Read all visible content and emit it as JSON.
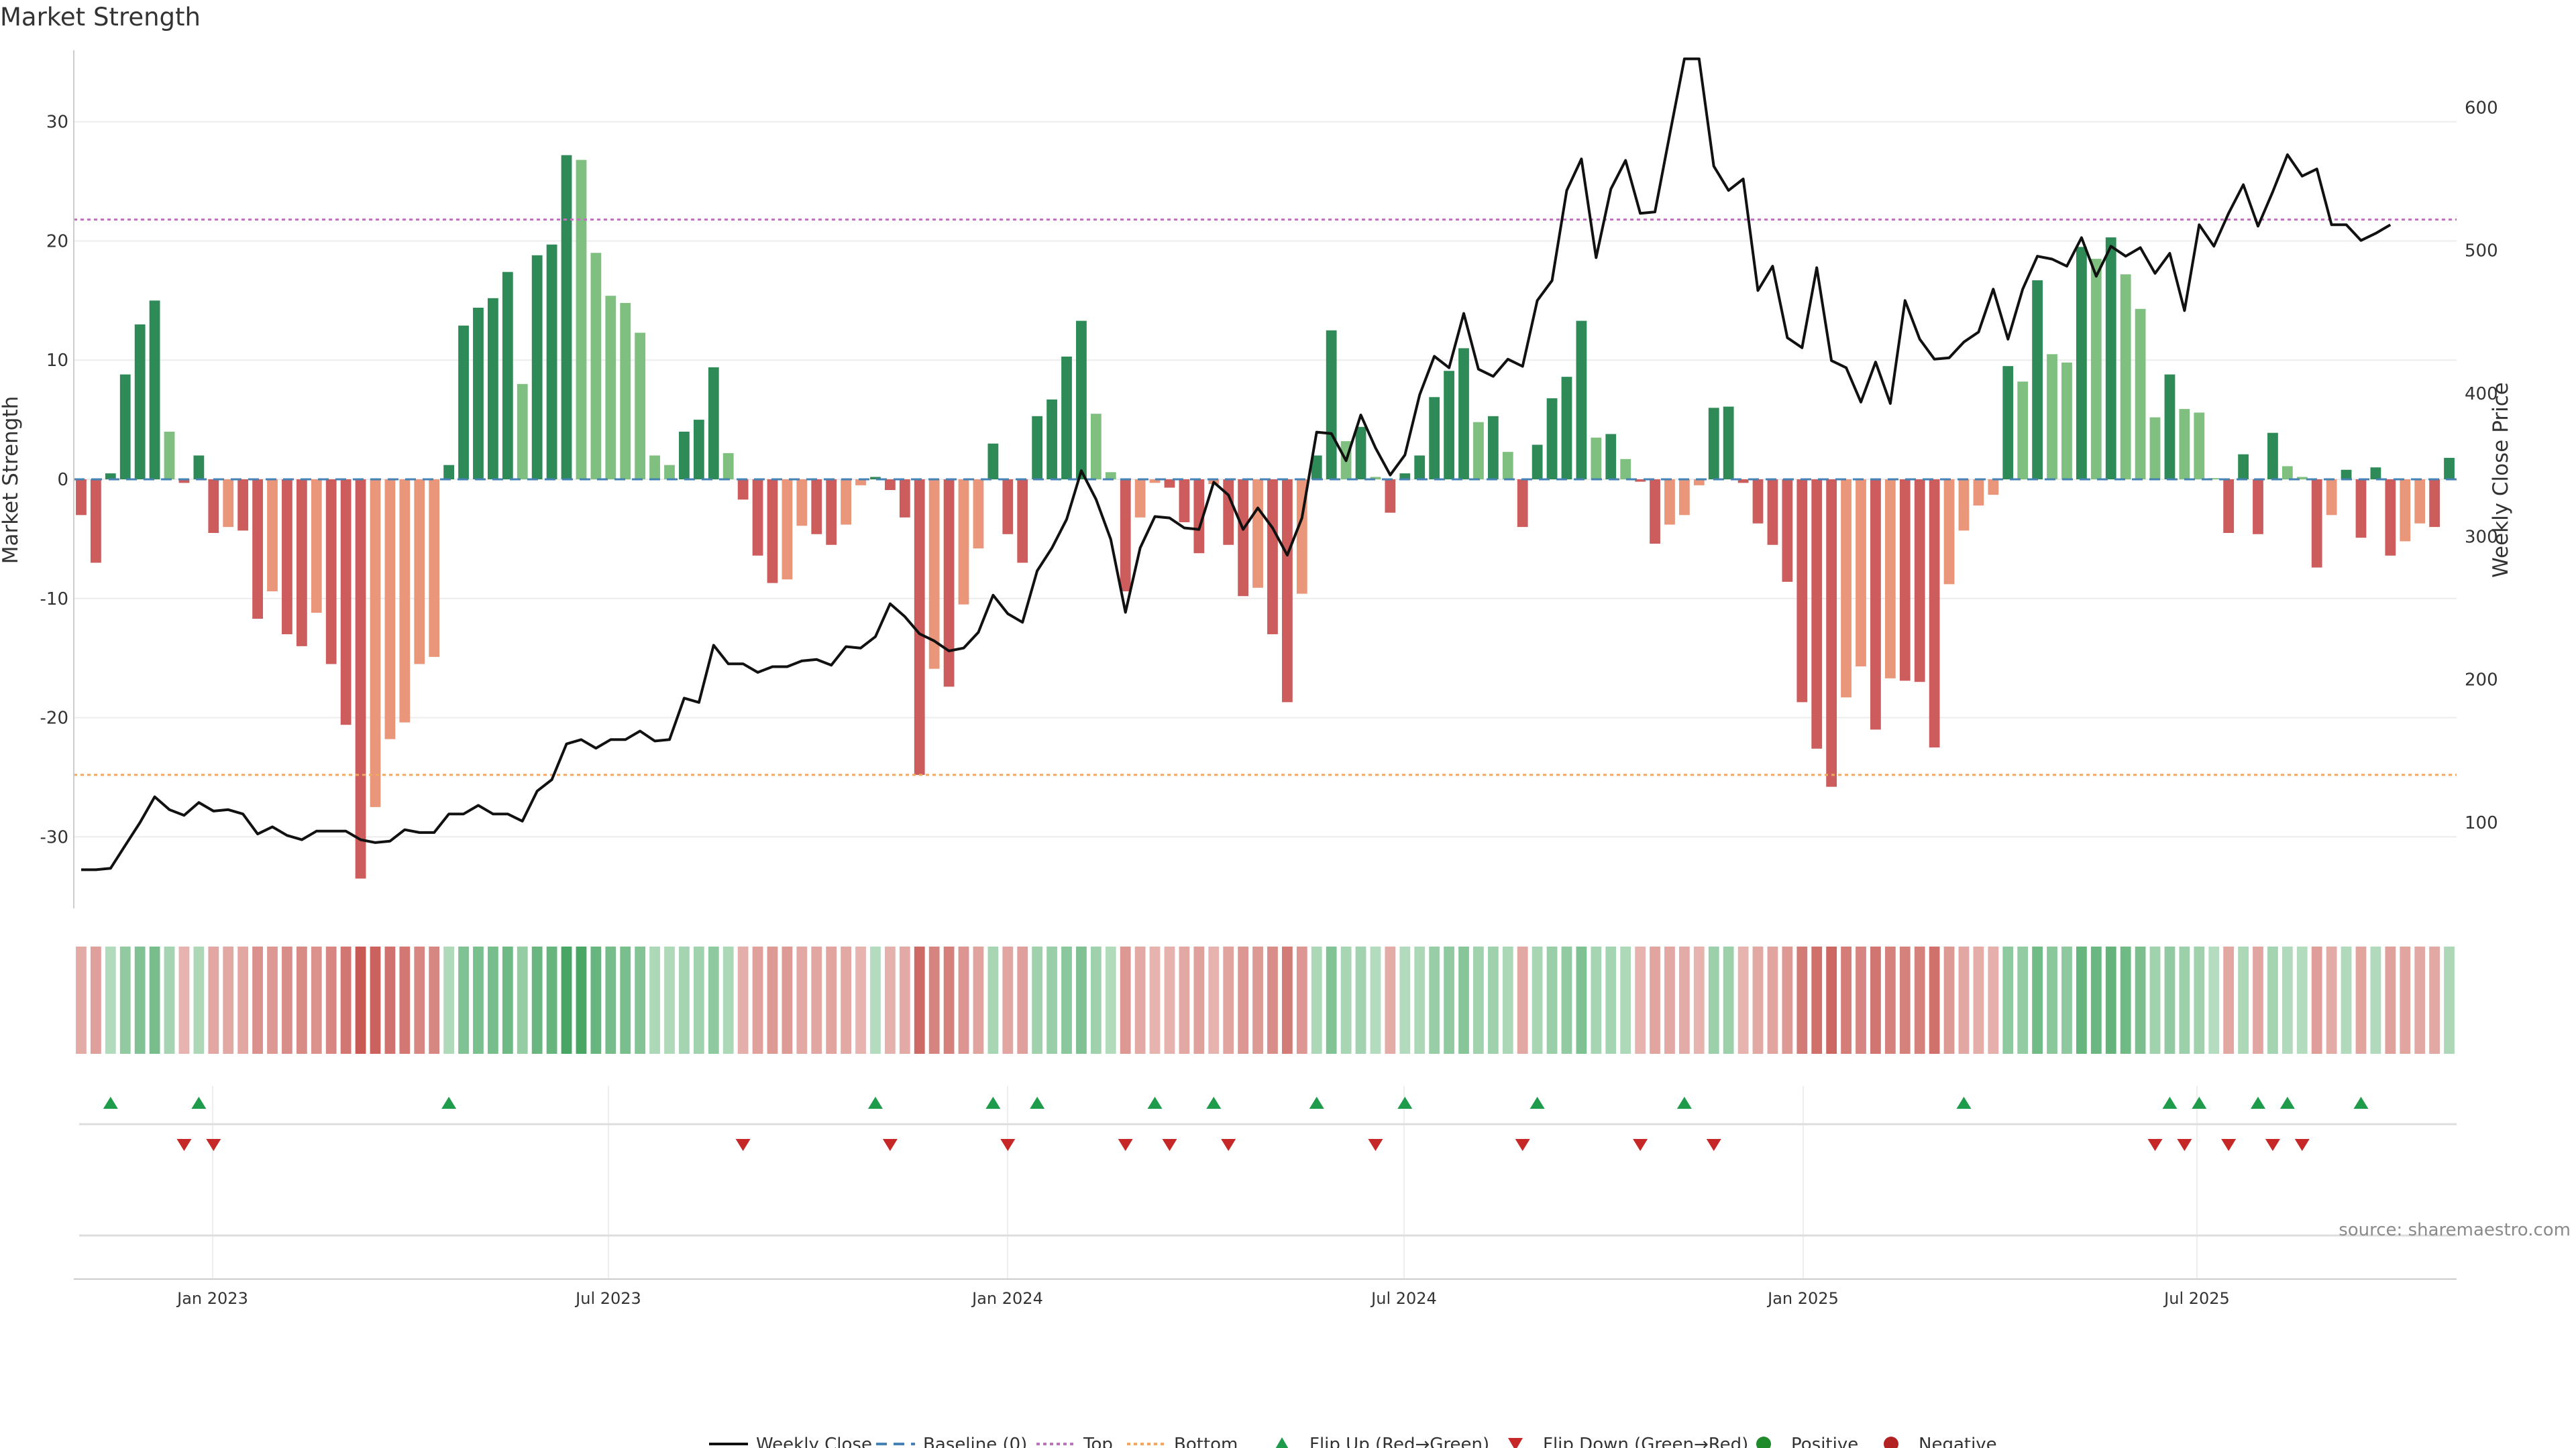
{
  "chart_data": {
    "type": "bar",
    "title": "Market Strength",
    "ylabel": "Market Strength",
    "y2label": "Weekly Close Price",
    "ylim": [
      -36,
      36
    ],
    "y_ticks": [
      -30,
      -20,
      -10,
      0,
      10,
      20,
      30
    ],
    "y2lim": [
      40,
      640
    ],
    "y2_ticks": [
      100,
      200,
      300,
      400,
      500,
      600
    ],
    "x_ticks": [
      "Jan 2023",
      "Jul 2023",
      "Jan 2024",
      "Jul 2024",
      "Jan 2025",
      "Jul 2025"
    ],
    "top_threshold": 21.8,
    "bottom_threshold": -24.8,
    "colors": {
      "strong_up": "#2e8b57",
      "weak_up": "#7fbf7f",
      "strong_down": "#cd5c5c",
      "weak_down": "#e9967a",
      "close_line": "#111111",
      "baseline": "#4682b4",
      "top": "#c071c0",
      "bottom": "#f0a868",
      "flip_up": "#1e9b4b",
      "flip_down": "#c62828",
      "positive": "#1e8a2a",
      "negative": "#b22222"
    },
    "strength": [
      -3,
      -7,
      0.5,
      8.8,
      13,
      15,
      4,
      -0.3,
      2,
      -4.5,
      -4,
      -4.3,
      -11.7,
      -9.4,
      -13,
      -14,
      -11.2,
      -15.5,
      -20.6,
      -33.5,
      -27.5,
      -21.8,
      -20.4,
      -15.5,
      -14.9,
      1.2,
      12.9,
      14.4,
      15.2,
      17.4,
      8,
      18.8,
      19.7,
      27.2,
      26.8,
      19,
      15.4,
      14.8,
      12.3,
      2,
      1.2,
      4,
      5,
      9.4,
      2.2,
      -1.7,
      -6.4,
      -8.7,
      -8.4,
      -3.9,
      -4.6,
      -5.5,
      -3.8,
      -0.5,
      0.2,
      -0.9,
      -3.2,
      -24.8,
      -15.9,
      -17.4,
      -10.5,
      -5.8,
      3,
      -4.6,
      -7,
      5.3,
      6.7,
      10.3,
      13.3,
      5.5,
      0.6,
      -9.4,
      -3.2,
      -0.3,
      -0.7,
      -3.6,
      -6.2,
      -0.4,
      -5.5,
      -9.8,
      -9.1,
      -13,
      -18.7,
      -9.6,
      2,
      12.5,
      3.2,
      4.4,
      0.2,
      -2.8,
      0.5,
      2,
      6.9,
      9.1,
      11,
      4.8,
      5.3,
      2.3,
      -4,
      2.9,
      6.8,
      8.6,
      13.3,
      3.5,
      3.8,
      1.7,
      -0.2,
      -5.4,
      -3.8,
      -3,
      -0.5,
      6,
      6.1,
      -0.3,
      -3.7,
      -5.5,
      -8.6,
      -18.7,
      -22.6,
      -25.8,
      -18.3,
      -15.7,
      -21,
      -16.7,
      -16.9,
      -17,
      -22.5,
      -8.8,
      -4.3,
      -2.2,
      -1.3,
      9.5,
      8.2,
      16.7,
      10.5,
      9.8,
      19.5,
      18.5,
      20.3,
      17.2,
      14.3,
      5.2,
      8.8,
      5.9,
      5.6,
      0.1,
      -4.5,
      2.1,
      -4.6,
      3.9,
      1.1,
      0.2,
      -7.4,
      -3,
      0.8,
      -4.9,
      1,
      -6.4,
      -5.2,
      -3.7,
      -4,
      1.8
    ],
    "weekly_close": [
      67,
      67,
      68,
      84,
      100,
      118,
      109,
      105,
      114,
      108,
      109,
      106,
      92,
      97,
      91,
      88,
      94,
      94,
      94,
      88,
      86,
      87,
      95,
      93,
      93,
      106,
      106,
      112,
      106,
      106,
      101,
      122,
      130,
      155,
      158,
      152,
      158,
      158,
      164,
      157,
      158,
      187,
      184,
      224,
      211,
      211,
      205,
      209,
      209,
      213,
      214,
      210,
      223,
      222,
      230,
      253,
      244,
      232,
      227,
      220,
      222,
      233,
      259,
      246,
      240,
      276,
      292,
      312,
      346,
      326,
      298,
      247,
      292,
      314,
      313,
      306,
      305,
      338,
      329,
      305,
      320,
      306,
      287,
      313,
      373,
      372,
      353,
      385,
      362,
      343,
      357,
      399,
      426,
      418,
      456,
      417,
      412,
      424,
      419,
      465,
      479,
      542,
      564,
      495,
      543,
      563,
      526,
      527,
      581,
      634,
      634,
      559,
      542,
      550,
      472,
      489,
      439,
      432,
      488,
      423,
      418,
      394,
      422,
      393,
      465,
      438,
      424,
      425,
      436,
      443,
      473,
      438,
      473,
      496,
      494,
      489,
      509,
      482,
      503,
      496,
      502,
      484,
      498,
      458,
      518,
      503,
      526,
      546,
      517,
      541,
      567,
      552,
      557,
      518,
      518,
      507,
      512,
      518
    ],
    "flip_up": [
      2,
      8,
      25,
      54,
      62,
      65,
      73,
      77,
      84,
      90,
      99,
      109,
      128,
      142,
      144,
      148,
      150,
      155
    ],
    "flip_down": [
      7,
      9,
      45,
      55,
      63,
      71,
      74,
      78,
      88,
      98,
      106,
      111,
      141,
      143,
      146,
      149,
      151
    ],
    "legend": [
      {
        "label": "Weekly Close",
        "marker": "line"
      },
      {
        "label": "Baseline (0)",
        "marker": "dash"
      },
      {
        "label": "Top",
        "marker": "dot-top"
      },
      {
        "label": "Bottom",
        "marker": "dot-bottom"
      },
      {
        "label": "Flip Up (Red→Green)",
        "marker": "tri-up"
      },
      {
        "label": "Flip Down (Green→Red)",
        "marker": "tri-down"
      },
      {
        "label": "Positive",
        "marker": "circle-pos"
      },
      {
        "label": "Negative",
        "marker": "circle-neg"
      }
    ],
    "source": "source: sharemaestro.com"
  }
}
